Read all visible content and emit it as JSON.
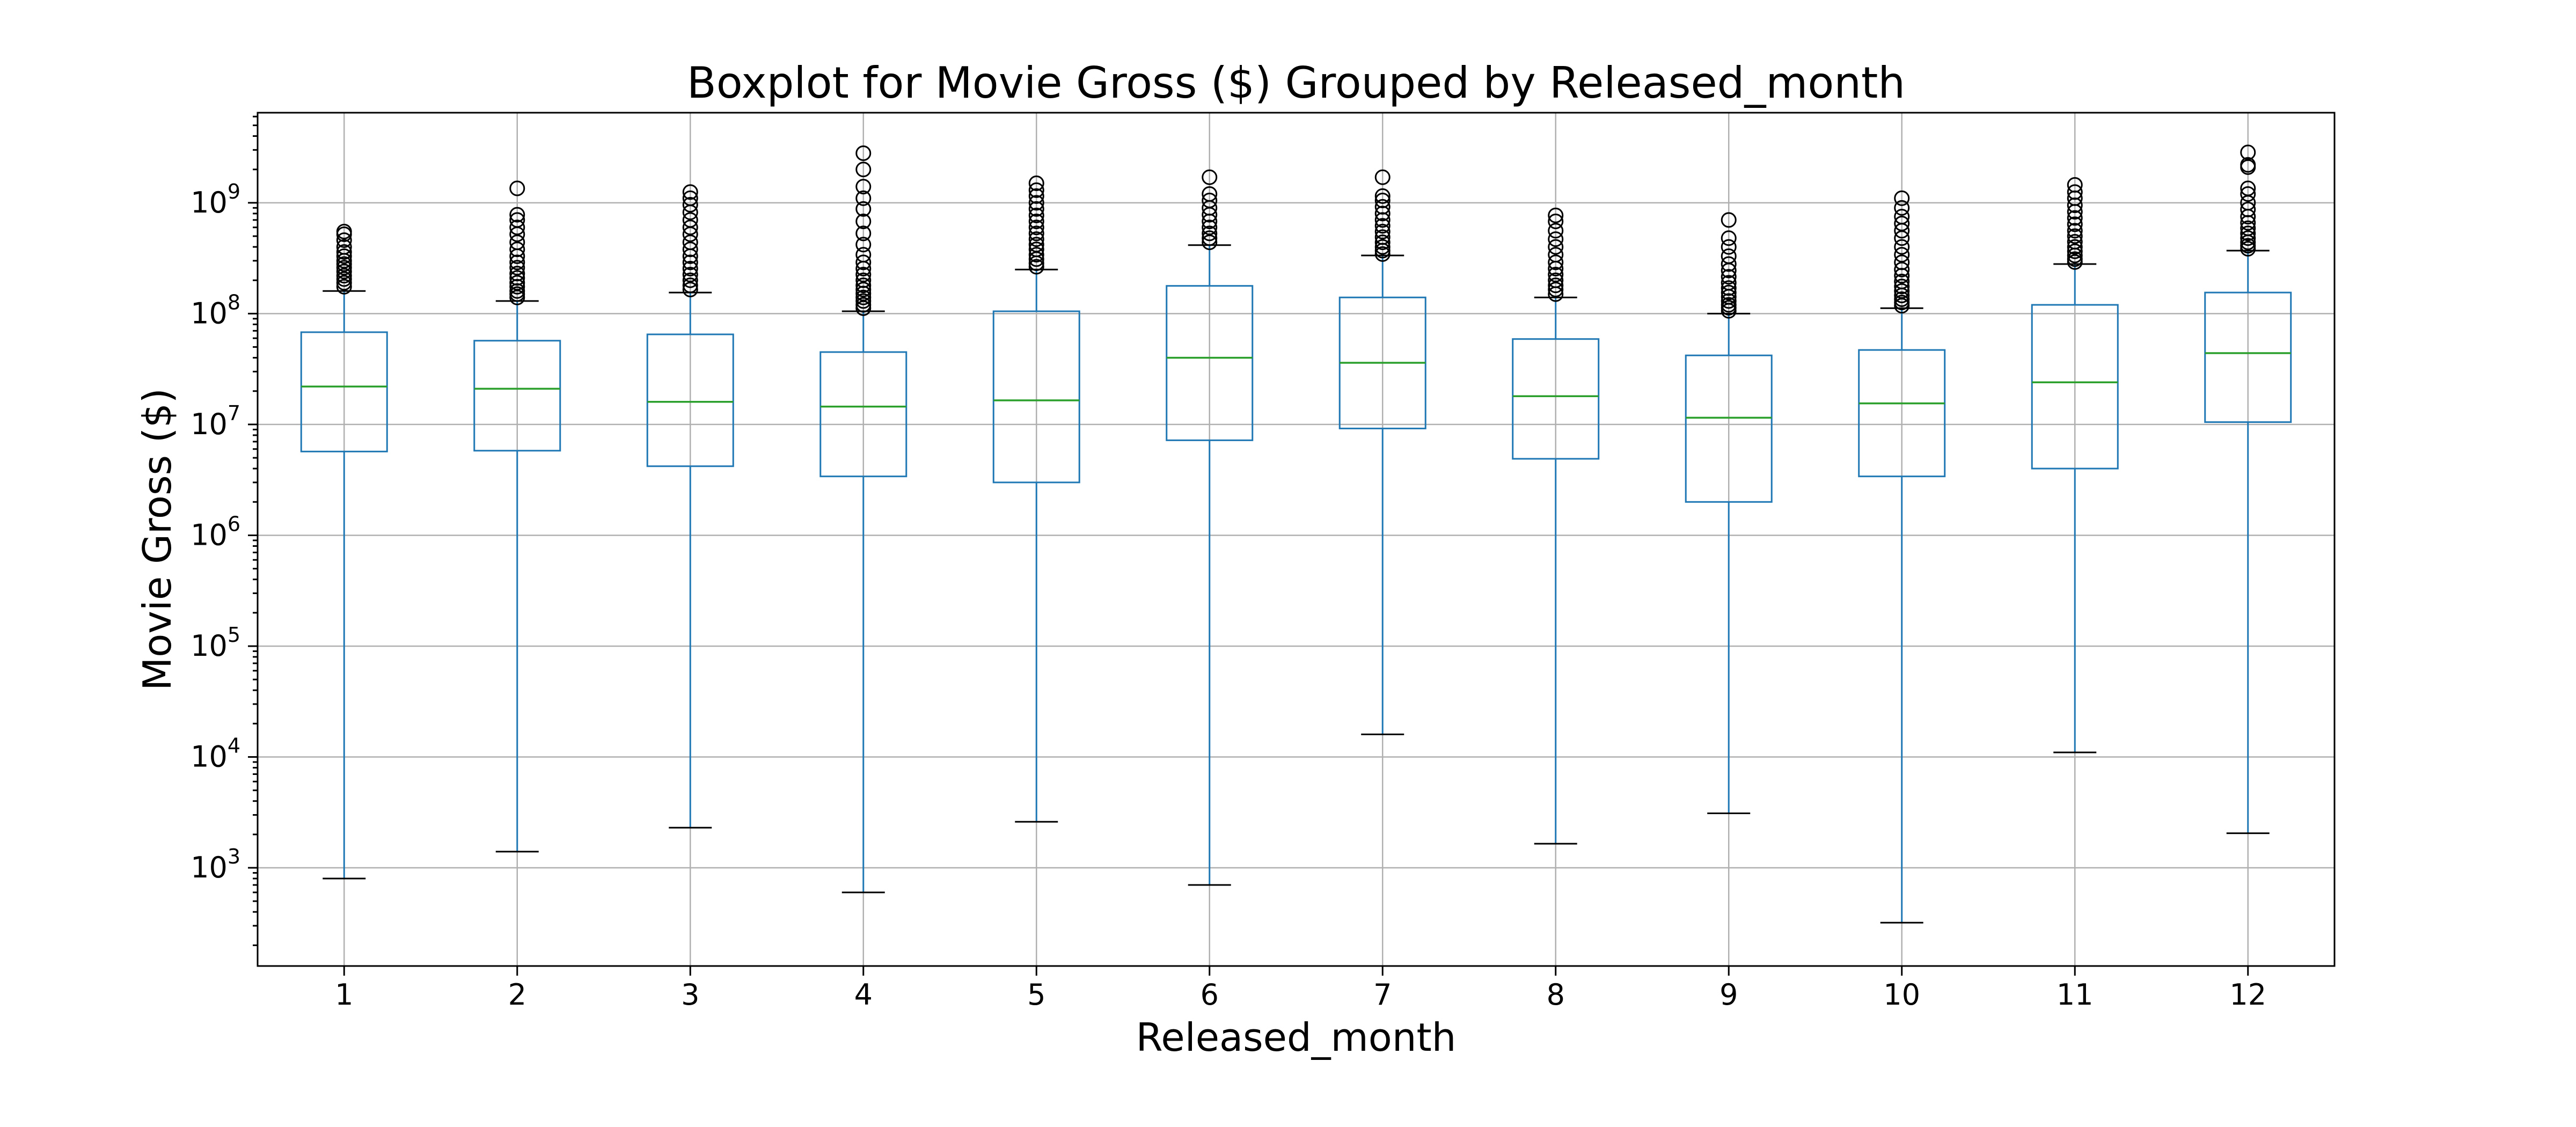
{
  "chart_data": {
    "type": "boxplot",
    "title": "Boxplot for Movie Gross ($) Grouped by Released_month",
    "xlabel": "Released_month",
    "ylabel": "Movie Gross ($)",
    "yscale": "log",
    "ylim": [
      130,
      6500000000
    ],
    "grid": true,
    "y_ticks": [
      {
        "value": 1000,
        "base": "10",
        "exp": "3"
      },
      {
        "value": 10000,
        "base": "10",
        "exp": "4"
      },
      {
        "value": 100000,
        "base": "10",
        "exp": "5"
      },
      {
        "value": 1000000,
        "base": "10",
        "exp": "6"
      },
      {
        "value": 10000000,
        "base": "10",
        "exp": "7"
      },
      {
        "value": 100000000,
        "base": "10",
        "exp": "8"
      },
      {
        "value": 1000000000,
        "base": "10",
        "exp": "9"
      }
    ],
    "colors": {
      "box": "#1f77b4",
      "median": "#2ca02c",
      "whisker_cap": "#000000",
      "flier": "#000000"
    },
    "categories": [
      "1",
      "2",
      "3",
      "4",
      "5",
      "6",
      "7",
      "8",
      "9",
      "10",
      "11",
      "12"
    ],
    "boxes": [
      {
        "category": "1",
        "whisker_low": 800,
        "q1": 5700000,
        "median": 22000000,
        "q3": 68000000,
        "whisker_high": 160000000,
        "fliers": [
          175000000,
          190000000,
          205000000,
          220000000,
          240000000,
          260000000,
          280000000,
          300000000,
          330000000,
          360000000,
          400000000,
          460000000,
          520000000,
          550000000
        ]
      },
      {
        "category": "2",
        "whisker_low": 1400,
        "q1": 5800000,
        "median": 21000000,
        "q3": 57000000,
        "whisker_high": 130000000,
        "fliers": [
          140000000,
          150000000,
          160000000,
          175000000,
          190000000,
          210000000,
          230000000,
          260000000,
          290000000,
          330000000,
          380000000,
          440000000,
          520000000,
          600000000,
          700000000,
          780000000,
          1350000000
        ]
      },
      {
        "category": "3",
        "whisker_low": 2300,
        "q1": 4200000,
        "median": 16000000,
        "q3": 65000000,
        "whisker_high": 155000000,
        "fliers": [
          165000000,
          180000000,
          200000000,
          225000000,
          255000000,
          290000000,
          330000000,
          380000000,
          440000000,
          520000000,
          600000000,
          700000000,
          820000000,
          960000000,
          1100000000,
          1250000000
        ]
      },
      {
        "category": "4",
        "whisker_low": 600,
        "q1": 3400000,
        "median": 14500000,
        "q3": 45000000,
        "whisker_high": 105000000,
        "fliers": [
          112000000,
          120000000,
          130000000,
          140000000,
          152000000,
          165000000,
          180000000,
          200000000,
          225000000,
          255000000,
          290000000,
          340000000,
          420000000,
          530000000,
          680000000,
          880000000,
          1100000000,
          1400000000,
          2000000000,
          2800000000
        ]
      },
      {
        "category": "5",
        "whisker_low": 2600,
        "q1": 3000000,
        "median": 16500000,
        "q3": 105000000,
        "whisker_high": 250000000,
        "fliers": [
          265000000,
          285000000,
          310000000,
          340000000,
          380000000,
          420000000,
          470000000,
          530000000,
          600000000,
          680000000,
          770000000,
          880000000,
          1000000000,
          1150000000,
          1300000000,
          1500000000
        ]
      },
      {
        "category": "6",
        "whisker_low": 700,
        "q1": 7200000,
        "median": 40000000,
        "q3": 178000000,
        "whisker_high": 415000000,
        "fliers": [
          440000000,
          480000000,
          530000000,
          600000000,
          680000000,
          780000000,
          900000000,
          1050000000,
          1200000000,
          1700000000
        ]
      },
      {
        "category": "7",
        "whisker_low": 16000,
        "q1": 9200000,
        "median": 36000000,
        "q3": 140000000,
        "whisker_high": 335000000,
        "fliers": [
          345000000,
          370000000,
          400000000,
          440000000,
          490000000,
          550000000,
          620000000,
          700000000,
          800000000,
          920000000,
          1050000000,
          1150000000,
          1700000000
        ]
      },
      {
        "category": "8",
        "whisker_low": 1650,
        "q1": 4900000,
        "median": 18000000,
        "q3": 59000000,
        "whisker_high": 140000000,
        "fliers": [
          150000000,
          165000000,
          180000000,
          200000000,
          225000000,
          255000000,
          290000000,
          340000000,
          400000000,
          470000000,
          560000000,
          680000000,
          770000000
        ]
      },
      {
        "category": "9",
        "whisker_low": 3100,
        "q1": 2000000,
        "median": 11500000,
        "q3": 42000000,
        "whisker_high": 100000000,
        "fliers": [
          106000000,
          113000000,
          120000000,
          130000000,
          142000000,
          155000000,
          170000000,
          190000000,
          215000000,
          245000000,
          280000000,
          330000000,
          400000000,
          480000000,
          700000000
        ]
      },
      {
        "category": "10",
        "whisker_low": 320,
        "q1": 3400000,
        "median": 15500000,
        "q3": 47000000,
        "whisker_high": 112000000,
        "fliers": [
          118000000,
          126000000,
          135000000,
          146000000,
          160000000,
          176000000,
          195000000,
          220000000,
          250000000,
          290000000,
          340000000,
          400000000,
          480000000,
          560000000,
          650000000,
          750000000,
          900000000,
          1100000000
        ]
      },
      {
        "category": "11",
        "whisker_low": 11000,
        "q1": 4000000,
        "median": 24000000,
        "q3": 120000000,
        "whisker_high": 280000000,
        "fliers": [
          292000000,
          310000000,
          335000000,
          365000000,
          400000000,
          445000000,
          500000000,
          560000000,
          640000000,
          730000000,
          830000000,
          950000000,
          1100000000,
          1250000000,
          1450000000
        ]
      },
      {
        "category": "12",
        "whisker_low": 2050,
        "q1": 10500000,
        "median": 44000000,
        "q3": 155000000,
        "whisker_high": 370000000,
        "fliers": [
          385000000,
          410000000,
          440000000,
          480000000,
          530000000,
          590000000,
          660000000,
          750000000,
          870000000,
          1000000000,
          1200000000,
          1350000000,
          2100000000,
          2200000000,
          2850000000
        ]
      }
    ]
  }
}
